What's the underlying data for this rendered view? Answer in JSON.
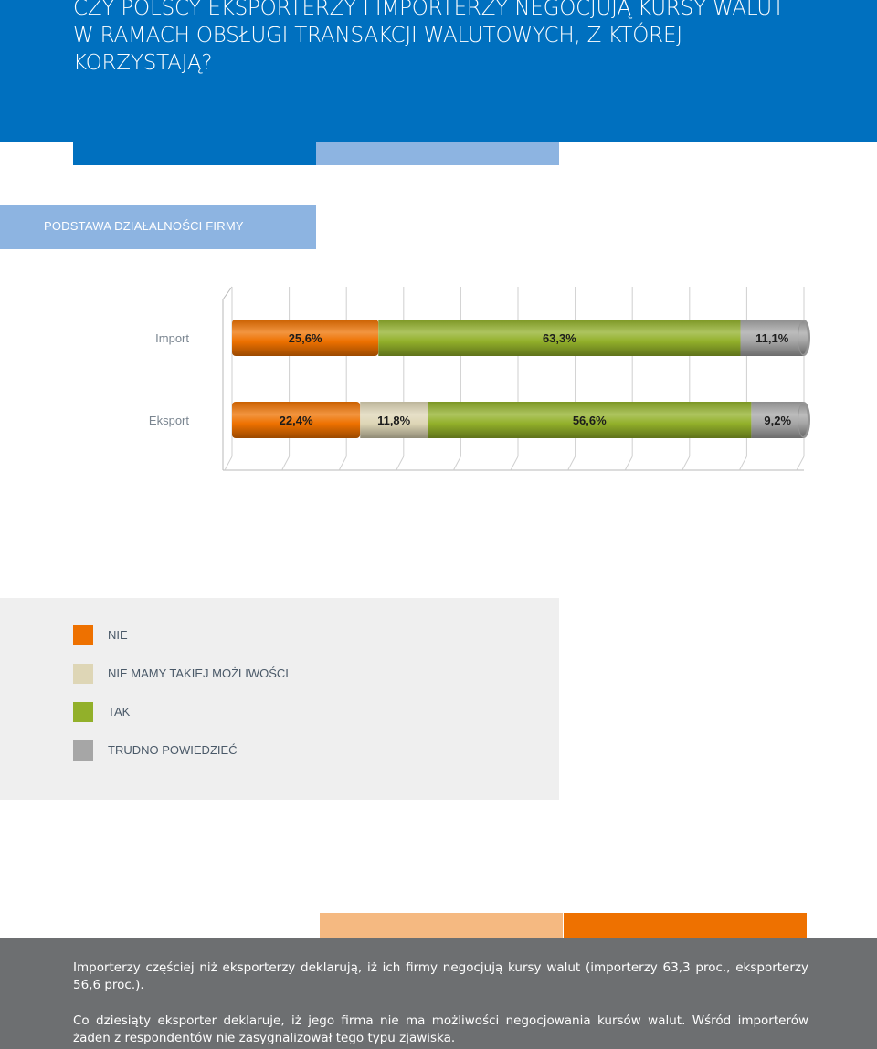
{
  "header": {
    "title": "CZY POLSCY EKSPORTERZY I IMPORTERZY NEGOCJUJĄ KURSY WALUT W RAMACH OBSŁUGI TRANSAKCJI WALUTOWYCH, Z KTÓREJ KORZYSTAJĄ?"
  },
  "basis": {
    "label": "PODSTAWA DZIAŁALNOŚCI FIRMY"
  },
  "colors": {
    "nie": "#ee7100",
    "nie_mamy": "#ded6b6",
    "tak": "#92b02a",
    "trudno": "#a6a6a6",
    "blue": "#0070bf",
    "light_blue": "#8db4e1"
  },
  "chart_data": {
    "type": "bar",
    "orientation": "horizontal",
    "stacked": true,
    "categories": [
      "Import",
      "Eksport"
    ],
    "series": [
      {
        "name": "NIE",
        "values": [
          25.6,
          22.4
        ],
        "labels": [
          "25,6%",
          "22,4%"
        ]
      },
      {
        "name": "NIE MAMY TAKIEJ MOŻLIWOŚCI",
        "values": [
          0,
          11.8
        ],
        "labels": [
          "",
          "11,8%"
        ]
      },
      {
        "name": "TAK",
        "values": [
          63.3,
          56.6
        ],
        "labels": [
          "63,3%",
          "56,6%"
        ]
      },
      {
        "name": "TRUDNO POWIEDZIEĆ",
        "values": [
          11.1,
          9.2
        ],
        "labels": [
          "11,1%",
          "9,2%"
        ]
      }
    ],
    "xlim": [
      0,
      100
    ],
    "grid": true,
    "legend_position": "below"
  },
  "legend": [
    {
      "label": "NIE",
      "color": "#ee7100"
    },
    {
      "label": "NIE MAMY TAKIEJ MOŻLIWOŚCI",
      "color": "#ded6b6"
    },
    {
      "label": "TAK",
      "color": "#92b02a"
    },
    {
      "label": "TRUDNO POWIEDZIEĆ",
      "color": "#a6a6a6"
    }
  ],
  "summary": {
    "p1": "Importerzy częściej niż eksporterzy deklarują, iż ich firmy negocjują kursy walut (importerzy 63,3 proc., eksporterzy 56,6 proc.).",
    "p2": "Co dziesiąty eksporter deklaruje, iż jego firma nie ma możliwości negocjowania kursów walut. Wśród importerów żaden z respondentów nie zasygnalizował tego typu zjawiska."
  }
}
